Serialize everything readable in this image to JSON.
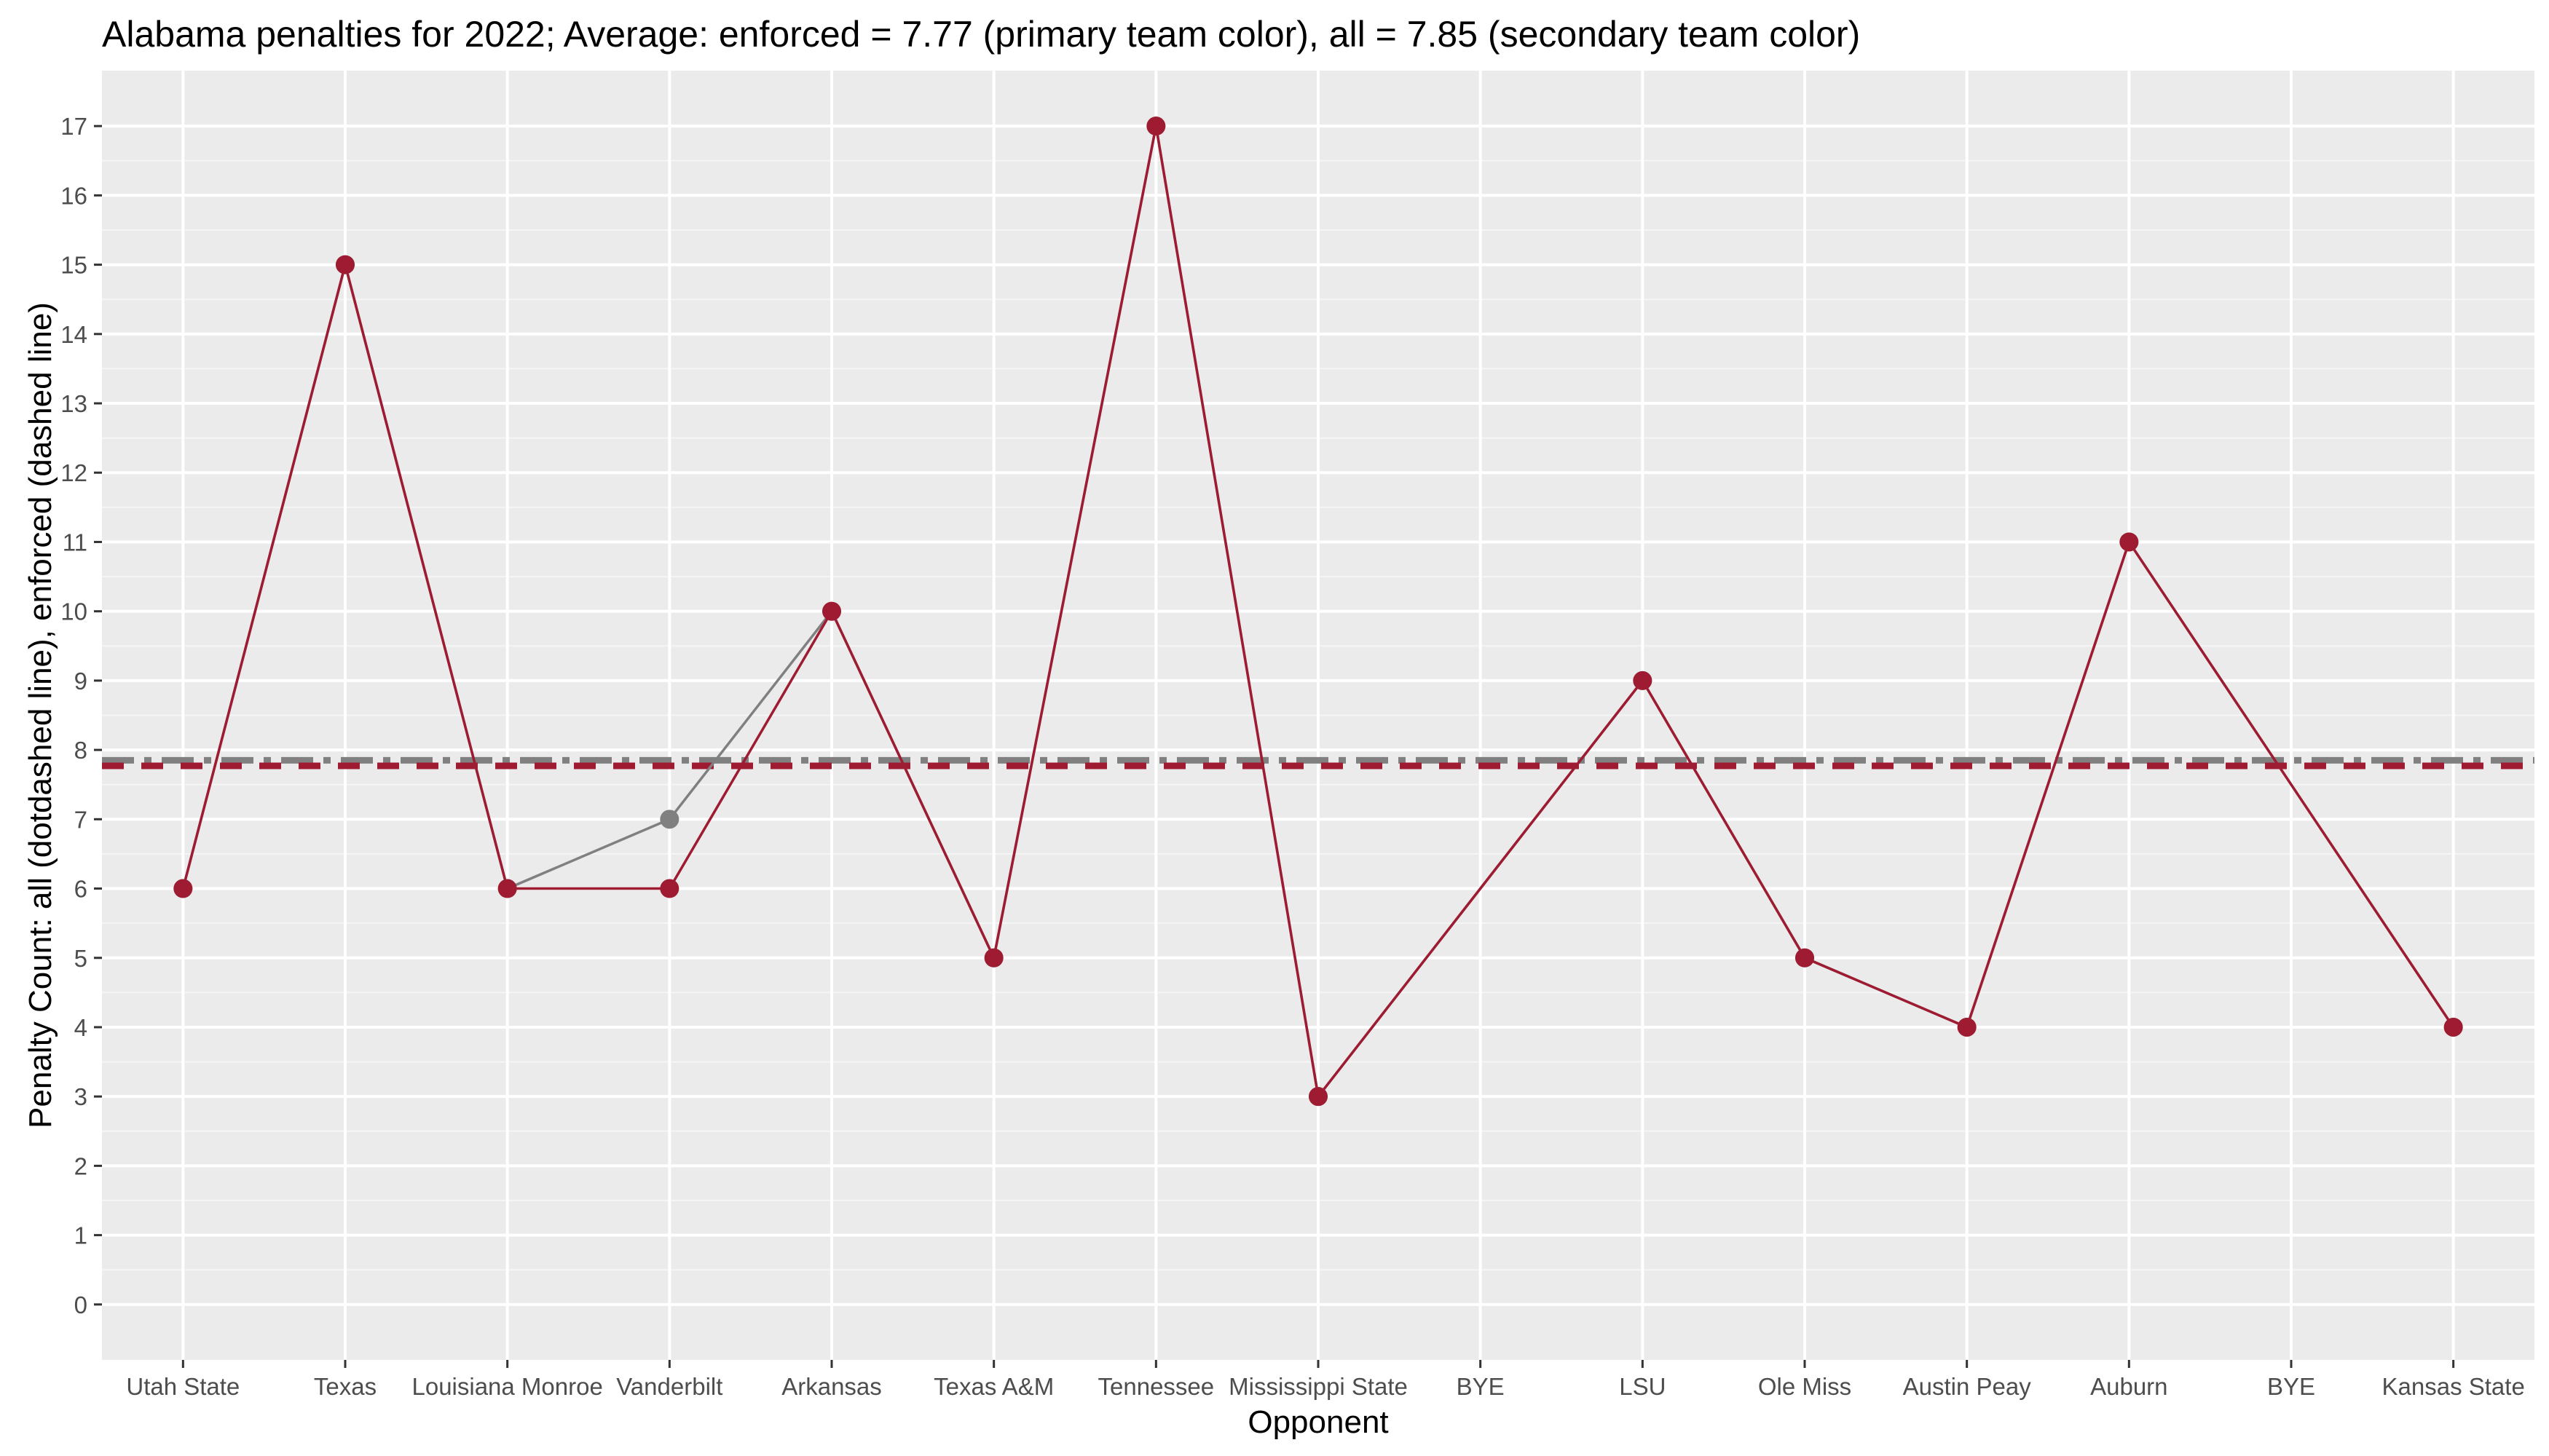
{
  "chart_data": {
    "type": "line",
    "title": "Alabama penalties for 2022; Average: enforced = 7.77 (primary team color), all = 7.85 (secondary team color)",
    "xlabel": "Opponent",
    "ylabel": "Penalty Count: all (dotdashed line), enforced (dashed line)",
    "categories": [
      "Utah State",
      "Texas",
      "Louisiana Monroe",
      "Vanderbilt",
      "Arkansas",
      "Texas A&M",
      "Tennessee",
      "Mississippi State",
      "BYE",
      "LSU",
      "Ole Miss",
      "Austin Peay",
      "Auburn",
      "BYE",
      "Kansas State"
    ],
    "ylim": [
      -0.8,
      17.8
    ],
    "yticks": [
      0,
      1,
      2,
      3,
      4,
      5,
      6,
      7,
      8,
      9,
      10,
      11,
      12,
      13,
      14,
      15,
      16,
      17
    ],
    "grid": true,
    "series": [
      {
        "name": "all",
        "color": "#808080",
        "values": [
          6,
          15,
          6,
          7,
          10,
          5,
          17,
          3,
          null,
          9,
          5,
          4,
          11,
          null,
          4
        ]
      },
      {
        "name": "enforced",
        "color": "#9E1B32",
        "values": [
          6,
          15,
          6,
          6,
          10,
          5,
          17,
          3,
          null,
          9,
          5,
          4,
          11,
          null,
          4
        ]
      }
    ],
    "averages": [
      {
        "name": "all",
        "value": 7.85,
        "color": "#808080",
        "style": "dotdash"
      },
      {
        "name": "enforced",
        "value": 7.77,
        "color": "#9E1B32",
        "style": "dashed"
      }
    ]
  }
}
